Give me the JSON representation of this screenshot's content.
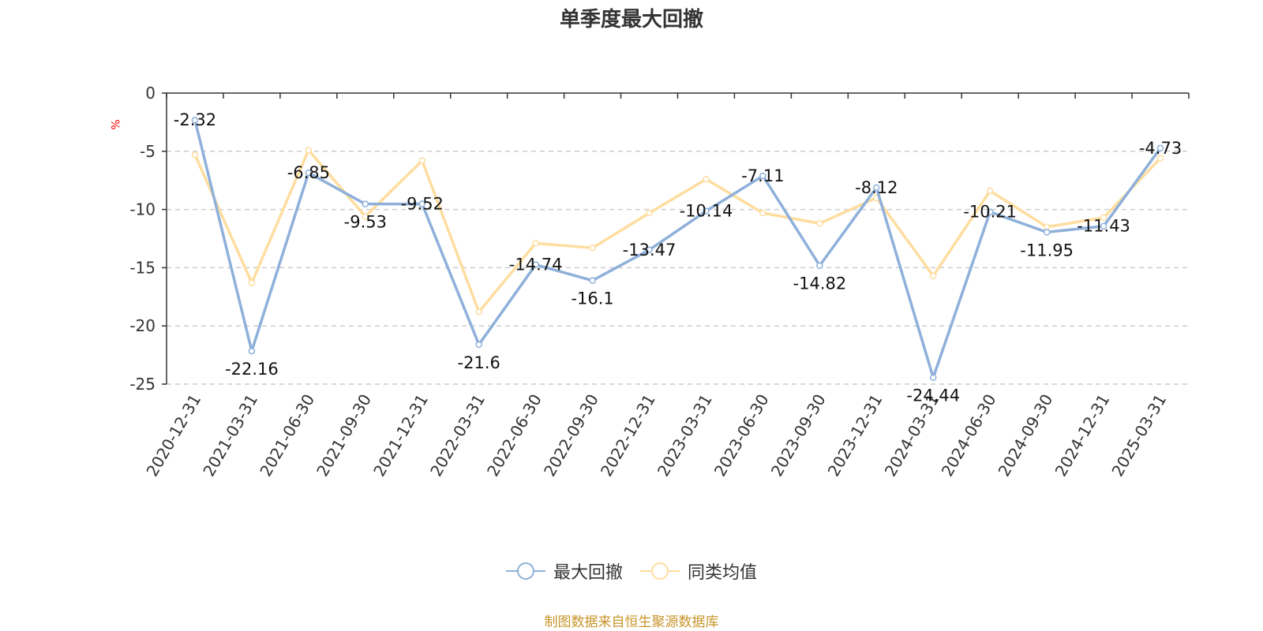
{
  "chart_data": {
    "type": "line",
    "title": "单季度最大回撤",
    "ylabel": "%",
    "ylim": [
      -25,
      0
    ],
    "yticks": [
      0,
      -5,
      -10,
      -15,
      -20,
      -25
    ],
    "grid": true,
    "legend_position": "bottom-center",
    "categories": [
      "2020-12-31",
      "2021-03-31",
      "2021-06-30",
      "2021-09-30",
      "2021-12-31",
      "2022-03-31",
      "2022-06-30",
      "2022-09-30",
      "2022-12-31",
      "2023-03-31",
      "2023-06-30",
      "2023-09-30",
      "2023-12-31",
      "2024-03-31",
      "2024-06-30",
      "2024-09-30",
      "2024-12-31",
      "2025-03-31"
    ],
    "series": [
      {
        "name": "最大回撤",
        "color": "#8eb0da",
        "values": [
          -2.32,
          -22.16,
          -6.85,
          -9.53,
          -9.52,
          -21.6,
          -14.74,
          -16.1,
          -13.47,
          -10.14,
          -7.11,
          -14.82,
          -8.12,
          -24.44,
          -10.21,
          -11.95,
          -11.43,
          -4.73
        ],
        "show_labels": true
      },
      {
        "name": "同类均值",
        "color": "#fedd9f",
        "values": [
          -5.3,
          -16.3,
          -4.9,
          -10.6,
          -5.8,
          -18.8,
          -12.9,
          -13.3,
          -10.3,
          -7.4,
          -10.3,
          -11.2,
          -9.0,
          -15.7,
          -8.4,
          -11.5,
          -10.7,
          -5.6
        ],
        "show_labels": false
      }
    ]
  },
  "footer": {
    "source": "制图数据来自恒生聚源数据库"
  }
}
